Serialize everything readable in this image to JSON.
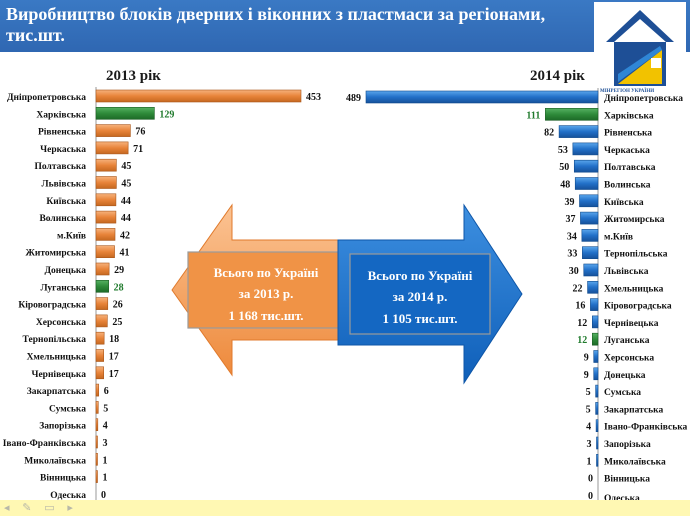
{
  "title": "Виробництво блоків дверних і віконних з пластмаси за регіонами, тис.шт.",
  "logo_text": "МІНРЕГІОН УКРАЇНИ",
  "colors": {
    "header": "#2f67b2",
    "orange": "#e8843a",
    "green": "#2e8b3a",
    "blue": "#2270c8",
    "footer": "#fff8b3"
  },
  "chart_data": [
    {
      "type": "bar",
      "title": "2013 рік",
      "categories": [
        "Дніпропетровська",
        "Харківська",
        "Рівненська",
        "Черкаська",
        "Полтавська",
        "Львівська",
        "Київська",
        "Волинська",
        "м.Київ",
        "Житомирська",
        "Донецька",
        "Луганська",
        "Кіровоградська",
        "Херсонська",
        "Тернопільська",
        "Хмельницька",
        "Чернівецька",
        "Закарпатська",
        "Сумська",
        "Запорізька",
        "Івано-Франківська",
        "Миколаївська",
        "Вінницька",
        "Одеська"
      ],
      "values": [
        453,
        129,
        76,
        71,
        45,
        45,
        44,
        44,
        42,
        41,
        29,
        28,
        26,
        25,
        18,
        17,
        17,
        6,
        5,
        4,
        3,
        1,
        1,
        0
      ],
      "highlight": [
        "Харківська",
        "Луганська"
      ],
      "callout": {
        "line1": "Всього по Україні",
        "line2": "за 2013 р.",
        "line3": "1 168 тис.шт."
      }
    },
    {
      "type": "bar",
      "title": "2014 рік",
      "categories": [
        "Дніпропетровська",
        "Харківська",
        "Рівненська",
        "Черкаська",
        "Полтавська",
        "Волинська",
        "Київська",
        "Житомирська",
        "м.Київ",
        "Тернопільська",
        "Львівська",
        "Хмельницька",
        "Кіровоградська",
        "Чернівецька",
        "Луганська",
        "Херсонська",
        "Донецька",
        "Сумська",
        "Закарпатська",
        "Івано-Франківська",
        "Запорізька",
        "Миколаївська",
        "Вінницька",
        "Одеська"
      ],
      "values": [
        489,
        111,
        82,
        53,
        50,
        48,
        39,
        37,
        34,
        33,
        30,
        22,
        16,
        12,
        12,
        9,
        9,
        5,
        5,
        4,
        3,
        1,
        0,
        0
      ],
      "highlight": [
        "Харківська",
        "Луганська"
      ],
      "callout": {
        "line1": "Всього по Україні",
        "line2": "за 2014 р.",
        "line3": "1 105 тис.шт."
      }
    }
  ]
}
